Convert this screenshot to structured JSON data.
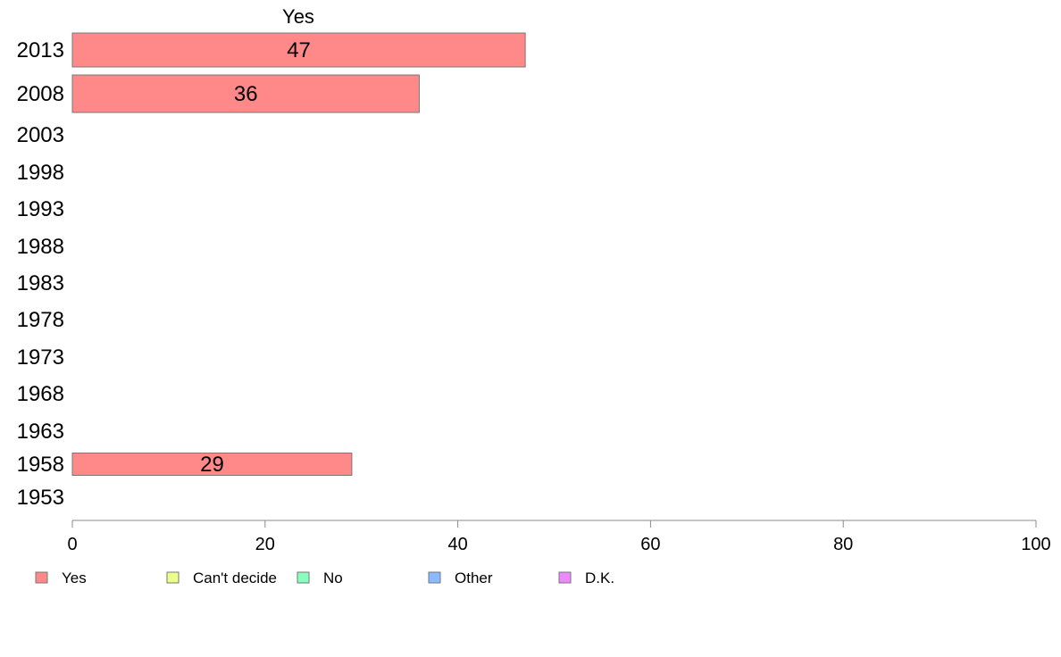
{
  "chart_data": {
    "type": "bar",
    "orientation": "horizontal",
    "title": "",
    "xlabel": "",
    "ylabel": "",
    "xlim": [
      0,
      100
    ],
    "x_ticks": [
      "0",
      "20",
      "40",
      "60",
      "80",
      "100"
    ],
    "grid": false,
    "legend_position": "bottom",
    "categories": [
      "2013",
      "2008",
      "2003",
      "1998",
      "1993",
      "1988",
      "1983",
      "1978",
      "1973",
      "1968",
      "1963",
      "1958",
      "1953"
    ],
    "series": [
      {
        "name": "Yes",
        "color": "#ff8888",
        "values": [
          47,
          36,
          null,
          null,
          null,
          null,
          null,
          null,
          null,
          null,
          null,
          29,
          null
        ],
        "labels": [
          "47",
          "36",
          "",
          "",
          "",
          "",
          "",
          "",
          "",
          "",
          "",
          "29",
          ""
        ]
      }
    ],
    "legend": [
      {
        "label": "Yes",
        "color": "#ff8888"
      },
      {
        "label": "Can't decide",
        "color": "#eeff88"
      },
      {
        "label": "No",
        "color": "#88ffbb"
      },
      {
        "label": "Other",
        "color": "#88bbff"
      },
      {
        "label": "D.K.",
        "color": "#ee88ff"
      }
    ]
  }
}
